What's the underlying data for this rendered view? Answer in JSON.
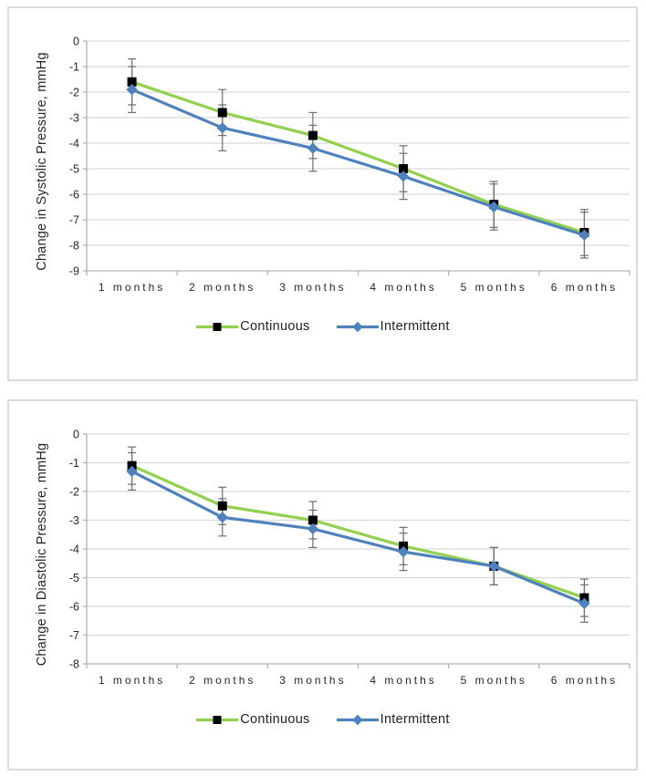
{
  "figure": {
    "background": "#ffffff",
    "panel_border_color": "#dbdbdb"
  },
  "chart_data": [
    {
      "type": "line",
      "title": "",
      "xlabel": "",
      "ylabel": "Change in Systolic Pressure, mmHg",
      "categories": [
        "1 months",
        "2 months",
        "3 months",
        "4 months",
        "5 months",
        "6 months"
      ],
      "ylim": [
        -9,
        0
      ],
      "ytick_step": 1,
      "grid": "horizontal",
      "legend_position": "bottom-center",
      "gridline_color": "#d9d9d9",
      "axis_color": "#b3b3b3",
      "text_color": "#262626",
      "error_bar_color": "#6e6e6e",
      "series": [
        {
          "name": "Continuous",
          "line_color": "#92d050",
          "marker": "square",
          "marker_color": "#000000",
          "values": [
            -1.6,
            -2.8,
            -3.7,
            -5.0,
            -6.4,
            -7.5
          ],
          "error_plus_minus": 0.9
        },
        {
          "name": "Intermittent",
          "line_color": "#4f81bd",
          "marker": "diamond",
          "marker_color": "#4f81bd",
          "values": [
            -1.9,
            -3.4,
            -4.2,
            -5.3,
            -6.5,
            -7.6
          ],
          "error_plus_minus": 0.9
        }
      ]
    },
    {
      "type": "line",
      "title": "",
      "xlabel": "",
      "ylabel": "Change in Diastolic Pressure, mmHg",
      "categories": [
        "1 months",
        "2 months",
        "3 months",
        "4 months",
        "5 months",
        "6 months"
      ],
      "ylim": [
        -8,
        0
      ],
      "ytick_step": 1,
      "grid": "horizontal",
      "legend_position": "bottom-center",
      "gridline_color": "#d9d9d9",
      "axis_color": "#b3b3b3",
      "text_color": "#262626",
      "error_bar_color": "#6e6e6e",
      "series": [
        {
          "name": "Continuous",
          "line_color": "#92d050",
          "marker": "square",
          "marker_color": "#000000",
          "values": [
            -1.1,
            -2.5,
            -3.0,
            -3.9,
            -4.6,
            -5.7
          ],
          "error_plus_minus": 0.65
        },
        {
          "name": "Intermittent",
          "line_color": "#4f81bd",
          "marker": "diamond",
          "marker_color": "#4f81bd",
          "values": [
            -1.3,
            -2.9,
            -3.3,
            -4.1,
            -4.6,
            -5.9
          ],
          "error_plus_minus": 0.65
        }
      ]
    }
  ]
}
